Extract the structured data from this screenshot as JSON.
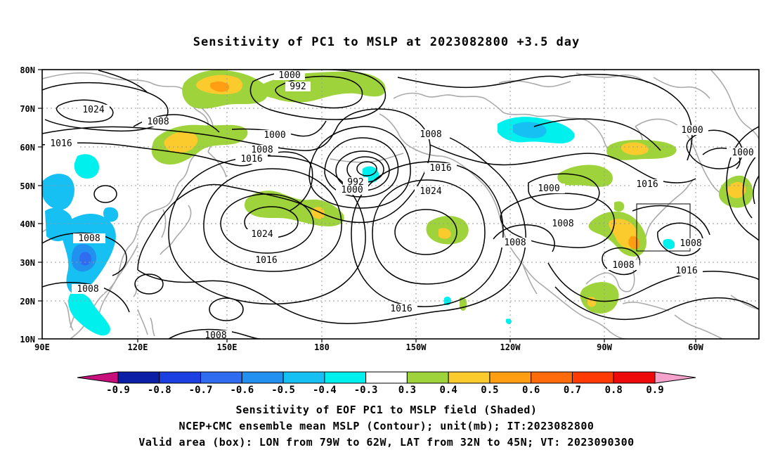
{
  "title": "Sensitivity of PC1 to MSLP at 2023082800 +3.5 day",
  "lat_ticks": [
    "80N",
    "70N",
    "60N",
    "50N",
    "40N",
    "30N",
    "20N",
    "10N"
  ],
  "lon_ticks": [
    "90E",
    "120E",
    "150E",
    "180",
    "150W",
    "120W",
    "90W",
    "60W"
  ],
  "contour_labels": {
    "c1000_a": "1000",
    "c992_a": "992",
    "c1024_a": "1024",
    "c1008_a": "1008",
    "c1016_a": "1016",
    "c1000_b": "1000",
    "c1008_b": "1008",
    "c1016_b": "1016",
    "c1008_c": "1008",
    "c1016_c": "1016",
    "c992_b": "992",
    "c1000_c": "1000",
    "c1024_b": "1024",
    "c1016_d": "1016",
    "c1008_d": "1008",
    "c1008_e": "1008",
    "c1008_f": "1008",
    "c1016_e": "1016",
    "c1024_c": "1024",
    "c1008_g": "1008",
    "c1016_f": "1016",
    "c1000_d": "1000",
    "c1008_h": "1008",
    "c1000_e": "1000",
    "c1000_f": "1000",
    "c1016_g": "1016",
    "c1008_i": "1008",
    "c1008_j": "1008",
    "c1016_h": "1016",
    "c1008_k": "1008"
  },
  "colorbar": {
    "labels": [
      "-0.9",
      "-0.8",
      "-0.7",
      "-0.6",
      "-0.5",
      "-0.4",
      "-0.3",
      "0.3",
      "0.4",
      "0.5",
      "0.6",
      "0.7",
      "0.8",
      "0.9"
    ],
    "colors": [
      "#0a1ea6",
      "#1b3fe0",
      "#2f6cf0",
      "#2290ee",
      "#17c0f2",
      "#00f0ee",
      "#ffffff",
      "#9fd33c",
      "#fbcb2e",
      "#ff9d13",
      "#ff6a0a",
      "#ff3a05",
      "#ee0a0a"
    ],
    "low_arrow_color": "#c8107c",
    "high_arrow_color": "#f5a3cc"
  },
  "footer": {
    "line1": "Sensitivity of EOF PC1 to MSLP field (Shaded)",
    "line2": "NCEP+CMC ensemble mean MSLP (Contour); unit(mb); IT:2023082800",
    "line3": "Valid area (box): LON from 79W to 62W, LAT from 32N to 45N; VT: 2023090300"
  }
}
